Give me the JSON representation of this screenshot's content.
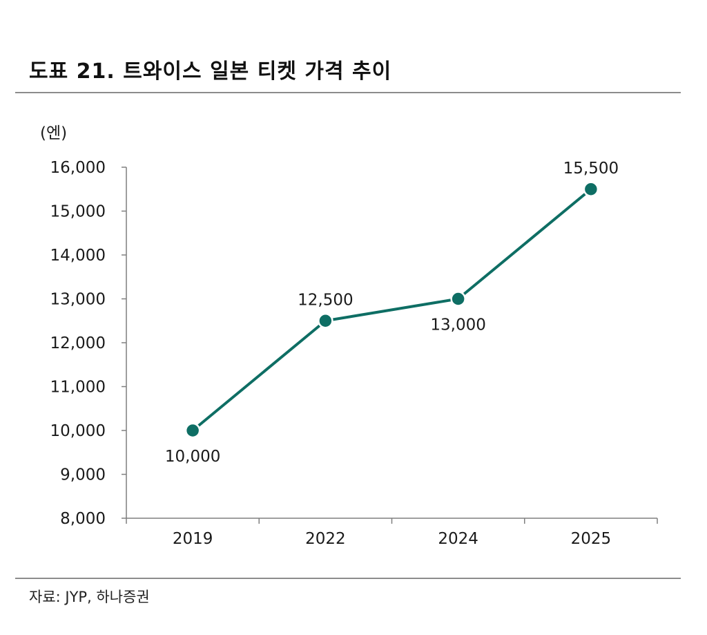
{
  "title": "도표 21. 트와이스 일본 티켓 가격 추이",
  "source": "자료: JYP, 하나증권",
  "colors": {
    "line": "#0e6e64",
    "marker": "#0e6e64",
    "marker_outline": "#ffffff",
    "axis": "#7f7f7f",
    "rule": "#8c8c8c"
  },
  "chart_data": {
    "type": "line",
    "title": "",
    "xlabel": "",
    "ylabel": "(엔)",
    "categories": [
      "2019",
      "2022",
      "2024",
      "2025"
    ],
    "series": [
      {
        "values": [
          10000,
          12500,
          13000,
          15500
        ]
      }
    ],
    "data_labels": [
      "10,000",
      "12,500",
      "13,000",
      "15,500"
    ],
    "data_label_positions": [
      "below",
      "above",
      "below",
      "above"
    ],
    "ylim": [
      8000,
      16000
    ],
    "yticks": [
      8000,
      9000,
      10000,
      11000,
      12000,
      13000,
      14000,
      15000,
      16000
    ],
    "ytick_labels": [
      "8,000",
      "9,000",
      "10,000",
      "11,000",
      "12,000",
      "13,000",
      "14,000",
      "15,000",
      "16,000"
    ],
    "grid": false,
    "legend": "none"
  }
}
